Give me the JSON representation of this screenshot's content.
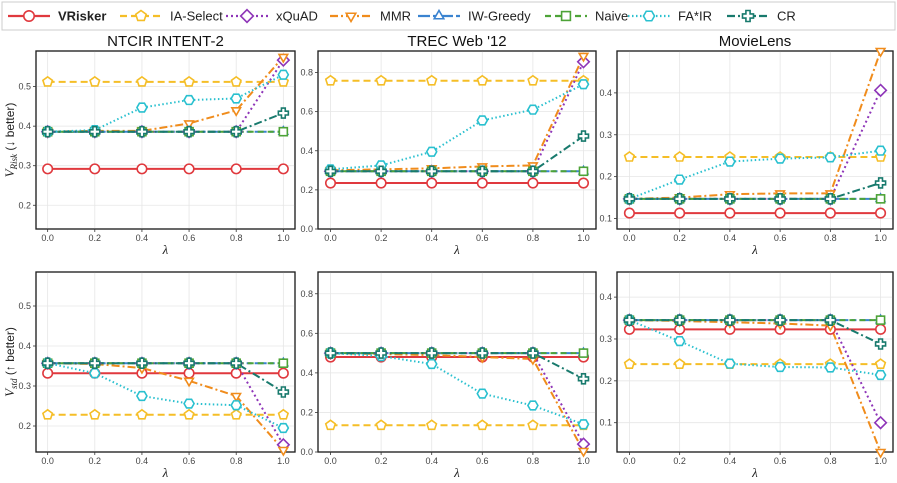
{
  "chart_data": {
    "type": "line",
    "legend_position": "top",
    "x": [
      0.0,
      0.2,
      0.4,
      0.6,
      0.8,
      1.0
    ],
    "x_tick_labels": [
      "0.0",
      "0.2",
      "0.4",
      "0.6",
      "0.8",
      "1.0"
    ],
    "xlabel": "λ",
    "row_ylabels": [
      {
        "main": "V",
        "sub": "Risk",
        "suffix": " (↓ better)"
      },
      {
        "main": "V",
        "sub": "std",
        "suffix": " (↑ better)"
      }
    ],
    "methods": [
      {
        "name": "VRisker",
        "color": "#e0393e",
        "dash": "",
        "marker": "circle",
        "bold": true
      },
      {
        "name": "IA-Select",
        "color": "#f5be27",
        "dash": "7,4",
        "marker": "pentagon",
        "bold": false
      },
      {
        "name": "xQuAD",
        "color": "#8e35b8",
        "dash": "2,3",
        "marker": "diamond",
        "bold": false
      },
      {
        "name": "MMR",
        "color": "#f08c1c",
        "dash": "8,3,2,3",
        "marker": "triangle-down",
        "bold": false
      },
      {
        "name": "IW-Greedy",
        "color": "#3a83d0",
        "dash": "12,3,5,3",
        "marker": "triangle-up",
        "bold": false
      },
      {
        "name": "Naive",
        "color": "#4da337",
        "dash": "6,4",
        "marker": "square",
        "bold": false
      },
      {
        "name": "FA*IR",
        "color": "#29c0cf",
        "dash": "1.5,2.5",
        "marker": "hexagon",
        "bold": false
      },
      {
        "name": "CR",
        "color": "#187a6d",
        "dash": "8,3,2,3",
        "marker": "plus",
        "bold": false
      }
    ],
    "panels": [
      {
        "title": "NTCIR INTENT-2",
        "row": 0,
        "col": 0,
        "ylim": [
          0.14,
          0.59
        ],
        "y_ticks": [
          0.2,
          0.3,
          0.4,
          0.5
        ],
        "y_tick_labels": [
          "0.2",
          "0.3",
          "0.4",
          "0.5"
        ],
        "series": [
          {
            "name": "VRisker",
            "values": [
              0.292,
              0.292,
              0.292,
              0.292,
              0.292,
              0.292
            ]
          },
          {
            "name": "IA-Select",
            "values": [
              0.512,
              0.512,
              0.512,
              0.512,
              0.512,
              0.512
            ]
          },
          {
            "name": "xQuAD",
            "values": [
              0.386,
              0.386,
              0.386,
              0.386,
              0.386,
              0.567
            ]
          },
          {
            "name": "MMR",
            "values": [
              0.386,
              0.388,
              0.388,
              0.407,
              0.44,
              0.575
            ]
          },
          {
            "name": "IW-Greedy",
            "values": [
              0.386,
              0.386,
              0.386,
              0.386,
              0.386,
              0.386
            ]
          },
          {
            "name": "Naive",
            "values": [
              0.386,
              0.386,
              0.386,
              0.386,
              0.386,
              0.386
            ]
          },
          {
            "name": "FA*IR",
            "values": [
              0.386,
              0.39,
              0.447,
              0.466,
              0.47,
              0.53
            ]
          },
          {
            "name": "CR",
            "values": [
              0.386,
              0.386,
              0.386,
              0.386,
              0.386,
              0.433
            ]
          }
        ]
      },
      {
        "title": "TREC Web '12",
        "row": 0,
        "col": 1,
        "ylim": [
          0.0,
          0.91
        ],
        "y_ticks": [
          0.0,
          0.2,
          0.4,
          0.6,
          0.8
        ],
        "y_tick_labels": [
          "0.0",
          "0.2",
          "0.4",
          "0.6",
          "0.8"
        ],
        "series": [
          {
            "name": "VRisker",
            "values": [
              0.235,
              0.235,
              0.235,
              0.235,
              0.235,
              0.235
            ]
          },
          {
            "name": "IA-Select",
            "values": [
              0.758,
              0.758,
              0.758,
              0.758,
              0.758,
              0.758
            ]
          },
          {
            "name": "xQuAD",
            "values": [
              0.295,
              0.295,
              0.295,
              0.295,
              0.295,
              0.855
            ]
          },
          {
            "name": "MMR",
            "values": [
              0.3,
              0.305,
              0.31,
              0.32,
              0.325,
              0.885
            ]
          },
          {
            "name": "IW-Greedy",
            "values": [
              0.295,
              0.295,
              0.295,
              0.295,
              0.295,
              0.295
            ]
          },
          {
            "name": "Naive",
            "values": [
              0.295,
              0.295,
              0.295,
              0.295,
              0.295,
              0.295
            ]
          },
          {
            "name": "FA*IR",
            "values": [
              0.305,
              0.325,
              0.395,
              0.555,
              0.61,
              0.74
            ]
          },
          {
            "name": "CR",
            "values": [
              0.295,
              0.295,
              0.295,
              0.295,
              0.295,
              0.475
            ]
          }
        ]
      },
      {
        "title": "MovieLens",
        "row": 0,
        "col": 2,
        "ylim": [
          0.075,
          0.5
        ],
        "y_ticks": [
          0.1,
          0.2,
          0.3,
          0.4
        ],
        "y_tick_labels": [
          "0.1",
          "0.2",
          "0.3",
          "0.4"
        ],
        "series": [
          {
            "name": "VRisker",
            "values": [
              0.113,
              0.113,
              0.113,
              0.113,
              0.113,
              0.113
            ]
          },
          {
            "name": "IA-Select",
            "values": [
              0.247,
              0.247,
              0.247,
              0.247,
              0.247,
              0.247
            ]
          },
          {
            "name": "xQuAD",
            "values": [
              0.147,
              0.147,
              0.147,
              0.147,
              0.147,
              0.406
            ]
          },
          {
            "name": "MMR",
            "values": [
              0.147,
              0.15,
              0.158,
              0.16,
              0.16,
              0.5
            ]
          },
          {
            "name": "IW-Greedy",
            "values": [
              0.147,
              0.147,
              0.147,
              0.147,
              0.147,
              0.147
            ]
          },
          {
            "name": "Naive",
            "values": [
              0.147,
              0.147,
              0.147,
              0.147,
              0.147,
              0.147
            ]
          },
          {
            "name": "FA*IR",
            "values": [
              0.147,
              0.193,
              0.236,
              0.243,
              0.246,
              0.262
            ]
          },
          {
            "name": "CR",
            "values": [
              0.147,
              0.147,
              0.147,
              0.147,
              0.147,
              0.185
            ]
          }
        ]
      },
      {
        "title": "",
        "row": 1,
        "col": 0,
        "ylim": [
          0.135,
          0.585
        ],
        "y_ticks": [
          0.2,
          0.3,
          0.4,
          0.5
        ],
        "y_tick_labels": [
          "0.2",
          "0.3",
          "0.4",
          "0.5"
        ],
        "series": [
          {
            "name": "VRisker",
            "values": [
              0.332,
              0.332,
              0.332,
              0.332,
              0.332,
              0.332
            ]
          },
          {
            "name": "IA-Select",
            "values": [
              0.228,
              0.228,
              0.228,
              0.228,
              0.228,
              0.228
            ]
          },
          {
            "name": "xQuAD",
            "values": [
              0.357,
              0.357,
              0.357,
              0.357,
              0.357,
              0.153
            ]
          },
          {
            "name": "MMR",
            "values": [
              0.357,
              0.355,
              0.345,
              0.313,
              0.275,
              0.14
            ]
          },
          {
            "name": "IW-Greedy",
            "values": [
              0.357,
              0.357,
              0.357,
              0.357,
              0.357,
              0.357
            ]
          },
          {
            "name": "Naive",
            "values": [
              0.357,
              0.357,
              0.357,
              0.357,
              0.357,
              0.357
            ]
          },
          {
            "name": "FA*IR",
            "values": [
              0.357,
              0.332,
              0.275,
              0.256,
              0.252,
              0.195
            ]
          },
          {
            "name": "CR",
            "values": [
              0.357,
              0.357,
              0.357,
              0.357,
              0.357,
              0.285
            ]
          }
        ]
      },
      {
        "title": "",
        "row": 1,
        "col": 1,
        "ylim": [
          0.0,
          0.91
        ],
        "y_ticks": [
          0.0,
          0.2,
          0.4,
          0.6,
          0.8
        ],
        "y_tick_labels": [
          "0.0",
          "0.2",
          "0.4",
          "0.6",
          "0.8"
        ],
        "series": [
          {
            "name": "VRisker",
            "values": [
              0.48,
              0.48,
              0.48,
              0.48,
              0.48,
              0.48
            ]
          },
          {
            "name": "IA-Select",
            "values": [
              0.135,
              0.135,
              0.135,
              0.135,
              0.135,
              0.135
            ]
          },
          {
            "name": "xQuAD",
            "values": [
              0.5,
              0.5,
              0.5,
              0.5,
              0.5,
              0.04
            ]
          },
          {
            "name": "MMR",
            "values": [
              0.5,
              0.495,
              0.49,
              0.48,
              0.47,
              0.005
            ]
          },
          {
            "name": "IW-Greedy",
            "values": [
              0.5,
              0.5,
              0.5,
              0.5,
              0.5,
              0.5
            ]
          },
          {
            "name": "Naive",
            "values": [
              0.5,
              0.5,
              0.5,
              0.5,
              0.5,
              0.5
            ]
          },
          {
            "name": "FA*IR",
            "values": [
              0.5,
              0.485,
              0.445,
              0.295,
              0.235,
              0.14
            ]
          },
          {
            "name": "CR",
            "values": [
              0.5,
              0.5,
              0.5,
              0.5,
              0.5,
              0.37
            ]
          }
        ]
      },
      {
        "title": "",
        "row": 1,
        "col": 2,
        "ylim": [
          0.03,
          0.46
        ],
        "y_ticks": [
          0.1,
          0.2,
          0.3,
          0.4
        ],
        "y_tick_labels": [
          "0.1",
          "0.2",
          "0.3",
          "0.4"
        ],
        "series": [
          {
            "name": "VRisker",
            "values": [
              0.323,
              0.323,
              0.323,
              0.323,
              0.323,
              0.323
            ]
          },
          {
            "name": "IA-Select",
            "values": [
              0.24,
              0.24,
              0.24,
              0.24,
              0.24,
              0.24
            ]
          },
          {
            "name": "xQuAD",
            "values": [
              0.345,
              0.345,
              0.345,
              0.345,
              0.345,
              0.1
            ]
          },
          {
            "name": "MMR",
            "values": [
              0.345,
              0.343,
              0.34,
              0.337,
              0.332,
              0.03
            ]
          },
          {
            "name": "IW-Greedy",
            "values": [
              0.345,
              0.345,
              0.345,
              0.345,
              0.345,
              0.345
            ]
          },
          {
            "name": "Naive",
            "values": [
              0.345,
              0.345,
              0.345,
              0.345,
              0.345,
              0.345
            ]
          },
          {
            "name": "FA*IR",
            "values": [
              0.345,
              0.295,
              0.241,
              0.233,
              0.232,
              0.214
            ]
          },
          {
            "name": "CR",
            "values": [
              0.345,
              0.345,
              0.345,
              0.345,
              0.345,
              0.288
            ]
          }
        ]
      }
    ]
  }
}
